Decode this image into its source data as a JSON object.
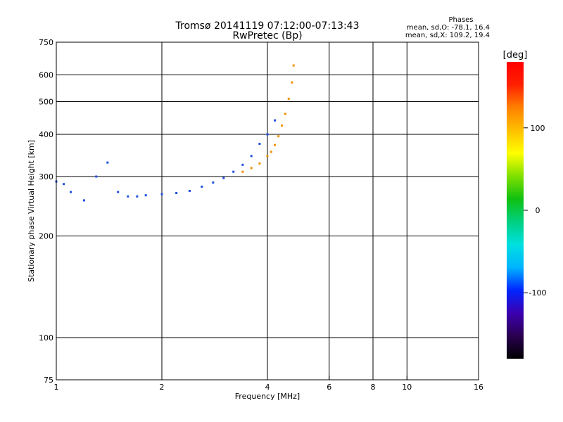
{
  "chart_data": {
    "type": "scatter",
    "title": "Tromsø 20141119 07:12:00-07:13:43",
    "subtitle": "RwPretec (Bp)",
    "xlabel": "Frequency [MHz]",
    "ylabel": "Stationary phase Virtual Height [km]",
    "x_scale": "log",
    "y_scale": "log",
    "xlim": [
      1,
      16
    ],
    "ylim": [
      75,
      750
    ],
    "x_ticks": [
      1,
      2,
      4,
      6,
      8,
      10,
      16
    ],
    "y_ticks": [
      75,
      100,
      200,
      300,
      400,
      500,
      600,
      750
    ],
    "grid": true,
    "stats": {
      "header": "Phases",
      "line_o": "mean, sd,O: -78.1, 16.4",
      "line_x": "mean, sd,X: 109.2, 19.4"
    },
    "colorbar": {
      "label": "[deg]",
      "ticks": [
        100,
        0,
        -100
      ],
      "range": [
        -180,
        180
      ],
      "colors": [
        "#000000",
        "#2a0050",
        "#3b00b0",
        "#0026ff",
        "#00b4ff",
        "#00e0e0",
        "#00d080",
        "#10c010",
        "#80e000",
        "#ffff00",
        "#ffc000",
        "#ff8000",
        "#ff2000",
        "#ff0000"
      ]
    },
    "series": [
      {
        "name": "O",
        "color": "#1f4fe0",
        "x": [
          1.0,
          1.05,
          1.1,
          1.2,
          1.3,
          1.4,
          1.5,
          1.6,
          1.7,
          1.8,
          2.0,
          2.2,
          2.4,
          2.6,
          2.8,
          3.0,
          3.2,
          3.4,
          3.6,
          3.8,
          4.0,
          4.2
        ],
        "y": [
          290,
          285,
          270,
          255,
          300,
          330,
          270,
          262,
          262,
          264,
          266,
          268,
          272,
          280,
          288,
          297,
          310,
          325,
          345,
          375,
          400,
          440
        ]
      },
      {
        "name": "X",
        "color": "#f09000",
        "x": [
          3.4,
          3.6,
          3.8,
          4.0,
          4.1,
          4.2,
          4.3,
          4.4,
          4.5,
          4.6,
          4.7,
          4.75
        ],
        "y": [
          310,
          318,
          328,
          345,
          355,
          372,
          395,
          425,
          460,
          510,
          570,
          640
        ]
      }
    ]
  }
}
